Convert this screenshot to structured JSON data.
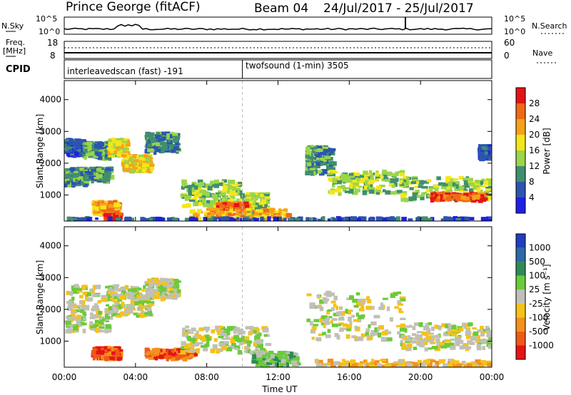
{
  "header": {
    "station": "Prince George (fitACF)",
    "beam": "Beam 04",
    "dates": "24/Jul/2017 - 25/Jul/2017"
  },
  "strip_panels": {
    "nsky_label": "N.Sky",
    "nsky_ticks": [
      "10^5",
      "10^0"
    ],
    "nsearch_label": "N.Search",
    "nsearch_ticks": [
      "10^5",
      "10^0"
    ],
    "freq_label": "Freq.",
    "freq_unit": "[MHz]",
    "freq_ticks": [
      "18",
      "8"
    ],
    "nave_label": "Nave",
    "nave_ticks": [
      "60",
      "0"
    ],
    "cpid_label": "CPID",
    "cpid_modes": [
      {
        "name": "interleavedscan (fast) -191",
        "start": 0,
        "end": 10
      },
      {
        "name": "twofsound (1-min) 3505",
        "start": 10,
        "end": 24
      }
    ]
  },
  "chart_data": [
    {
      "type": "heatmap",
      "panel": "power",
      "ylabel": "Slant Range [km]",
      "xlabel": "",
      "x_ticks": [
        "00:00",
        "04:00",
        "08:00",
        "12:00",
        "16:00",
        "20:00",
        "00:00"
      ],
      "y_ticks": [
        "1000",
        "2000",
        "3000",
        "4000"
      ],
      "xlim": [
        0,
        24
      ],
      "ylim": [
        180,
        4600
      ],
      "colorbar_label": "Power [dB]",
      "colorbar_ticks": [
        "4",
        "8",
        "12",
        "16",
        "20",
        "24",
        "28"
      ],
      "colorbar_colors": [
        "#1f1fe6",
        "#2c54b0",
        "#3f8f6f",
        "#9ad54a",
        "#f5e61a",
        "#f5a21a",
        "#ef6a16",
        "#e51414"
      ],
      "bands": [
        {
          "t0": 0.0,
          "t1": 1.2,
          "r0": 1350,
          "r1": 1900,
          "level": 2
        },
        {
          "t0": 0.0,
          "t1": 1.0,
          "r0": 2300,
          "r1": 2800,
          "level": 1
        },
        {
          "t0": 1.0,
          "t1": 2.5,
          "r0": 1500,
          "r1": 1900,
          "level": 2
        },
        {
          "t0": 1.0,
          "t1": 2.6,
          "r0": 2200,
          "r1": 2700,
          "level": 2
        },
        {
          "t0": 2.4,
          "t1": 3.4,
          "r0": 2300,
          "r1": 2800,
          "level": 4
        },
        {
          "t0": 3.2,
          "t1": 4.8,
          "r0": 1800,
          "r1": 2300,
          "level": 4
        },
        {
          "t0": 4.5,
          "t1": 6.3,
          "r0": 2400,
          "r1": 3000,
          "level": 2
        },
        {
          "t0": 1.5,
          "t1": 3.0,
          "r0": 450,
          "r1": 850,
          "level": 5
        },
        {
          "t0": 2.2,
          "t1": 3.0,
          "r0": 250,
          "r1": 450,
          "level": 7
        },
        {
          "t0": 6.5,
          "t1": 9.8,
          "r0": 700,
          "r1": 1500,
          "level": 3
        },
        {
          "t0": 9.8,
          "t1": 11.3,
          "r0": 450,
          "r1": 1100,
          "level": 3
        },
        {
          "t0": 8.5,
          "t1": 10.2,
          "r0": 600,
          "r1": 800,
          "level": 6
        },
        {
          "t0": 7.0,
          "t1": 12.5,
          "r0": 250,
          "r1": 600,
          "level": 5
        },
        {
          "t0": 13.5,
          "t1": 15.0,
          "r0": 1700,
          "r1": 2600,
          "level": 2
        },
        {
          "t0": 14.8,
          "t1": 19.0,
          "r0": 1100,
          "r1": 1800,
          "level": 3
        },
        {
          "t0": 18.8,
          "t1": 24.0,
          "r0": 900,
          "r1": 1600,
          "level": 3
        },
        {
          "t0": 20.5,
          "t1": 23.5,
          "r0": 900,
          "r1": 1100,
          "level": 6
        },
        {
          "t0": 23.2,
          "t1": 24.0,
          "r0": 2200,
          "r1": 2600,
          "level": 1
        },
        {
          "t0": 0.0,
          "t1": 24.0,
          "r0": 180,
          "r1": 320,
          "level": 1
        }
      ]
    },
    {
      "type": "heatmap",
      "panel": "velocity",
      "ylabel": "Slant Range [km]",
      "xlabel": "Time UT",
      "x_ticks": [
        "00:00",
        "04:00",
        "08:00",
        "12:00",
        "16:00",
        "20:00",
        "00:00"
      ],
      "y_ticks": [
        "1000",
        "2000",
        "3000",
        "4000"
      ],
      "xlim": [
        0,
        24
      ],
      "ylim": [
        180,
        4600
      ],
      "colorbar_label": "Velocity [m s⁻¹]",
      "colorbar_ticks": [
        "1000",
        "500",
        "100",
        "25",
        "-25",
        "-100",
        "-500",
        "-1000"
      ],
      "colorbar_colors": [
        "#1f3fbf",
        "#2c6aa8",
        "#2e8b57",
        "#6acb3a",
        "#c0c0b8",
        "#f5c21a",
        "#f5901a",
        "#ef5a16",
        "#e51414"
      ],
      "bands": [
        {
          "t0": 0.0,
          "t1": 2.5,
          "r0": 1350,
          "r1": 2800,
          "level": 4
        },
        {
          "t0": 2.4,
          "t1": 4.8,
          "r0": 1800,
          "r1": 2800,
          "level": 4
        },
        {
          "t0": 4.5,
          "t1": 6.3,
          "r0": 2400,
          "r1": 3000,
          "level": 4
        },
        {
          "t0": 1.5,
          "t1": 3.0,
          "r0": 500,
          "r1": 850,
          "level": 7
        },
        {
          "t0": 4.5,
          "t1": 7.2,
          "r0": 500,
          "r1": 800,
          "level": 7
        },
        {
          "t0": 6.5,
          "t1": 11.3,
          "r0": 700,
          "r1": 1500,
          "level": 4
        },
        {
          "t0": 10.5,
          "t1": 13.0,
          "r0": 250,
          "r1": 700,
          "level": 3
        },
        {
          "t0": 13.5,
          "t1": 19.0,
          "r0": 1100,
          "r1": 2600,
          "level": 4
        },
        {
          "t0": 18.8,
          "t1": 24.0,
          "r0": 800,
          "r1": 1600,
          "level": 4
        },
        {
          "t0": 14.0,
          "t1": 24.0,
          "r0": 180,
          "r1": 450,
          "level": 5
        }
      ]
    }
  ]
}
